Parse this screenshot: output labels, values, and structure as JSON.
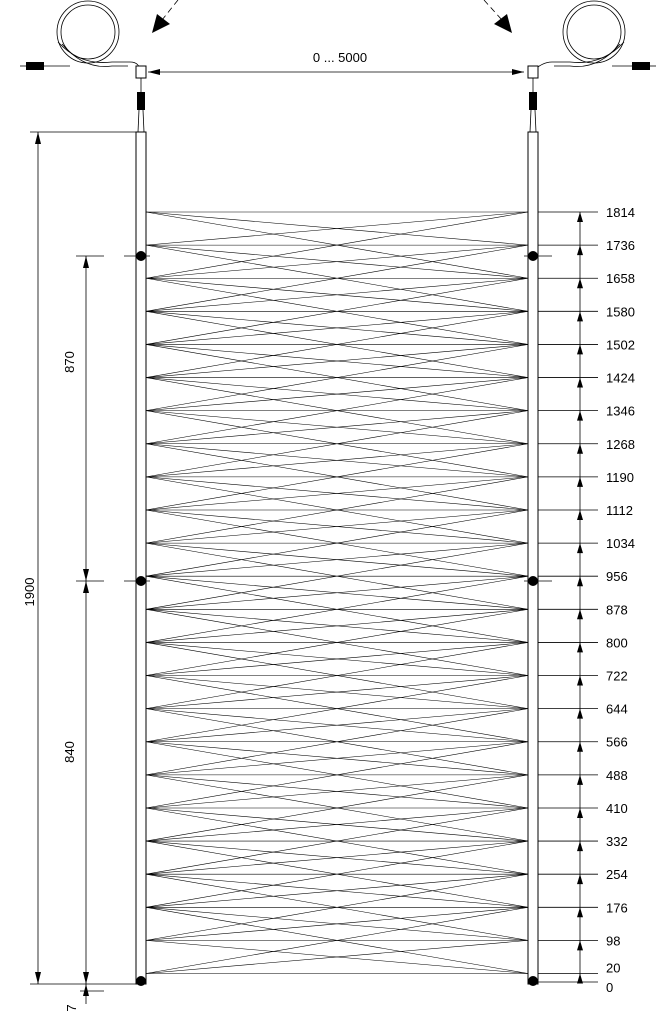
{
  "diagram": {
    "range_label": "0 ... 5000",
    "total_height_label": "1900",
    "upper_spacing_label": "870",
    "lower_spacing_label": "840",
    "bottom_offset_label": "7",
    "beam_heights": [
      "1814",
      "1736",
      "1658",
      "1580",
      "1502",
      "1424",
      "1346",
      "1268",
      "1190",
      "1112",
      "1034",
      "956",
      "878",
      "800",
      "722",
      "644",
      "566",
      "488",
      "410",
      "332",
      "254",
      "176",
      "98",
      "20",
      "0"
    ]
  }
}
